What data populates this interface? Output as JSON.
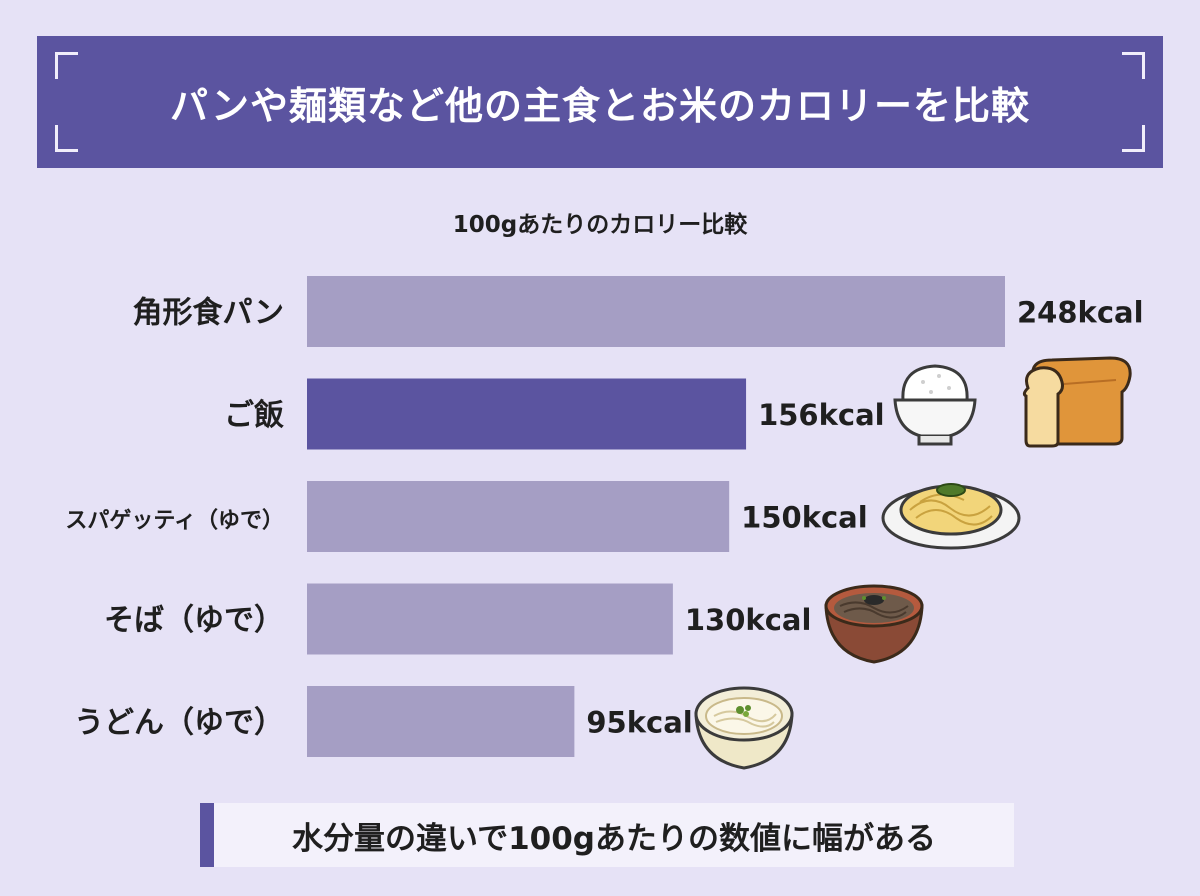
{
  "title": "パンや麺類など他の主食とお米のカロリーを比較",
  "note": "水分量の違いで100gあたりの数値に幅がある",
  "colors": {
    "background": "#e6e2f6",
    "accent": "#5b54a0",
    "bar": "#a59ec4",
    "bar_highlight": "#5b54a0"
  },
  "icons": [
    "bread-loaf-icon",
    "rice-bowl-icon",
    "spaghetti-plate-icon",
    "soba-bowl-icon",
    "udon-bowl-icon"
  ],
  "chart_data": {
    "type": "bar",
    "orientation": "horizontal",
    "title": "100gあたりのカロリー比較",
    "categories": [
      "角形食パン",
      "ご飯",
      "スパゲッティ（ゆで）",
      "そば（ゆで）",
      "うどん（ゆで）"
    ],
    "values": [
      248,
      156,
      150,
      130,
      95
    ],
    "value_labels": [
      "248kcal",
      "156kcal",
      "150kcal",
      "130kcal",
      "95kcal"
    ],
    "unit": "kcal",
    "highlight": "ご飯",
    "grid": false
  }
}
